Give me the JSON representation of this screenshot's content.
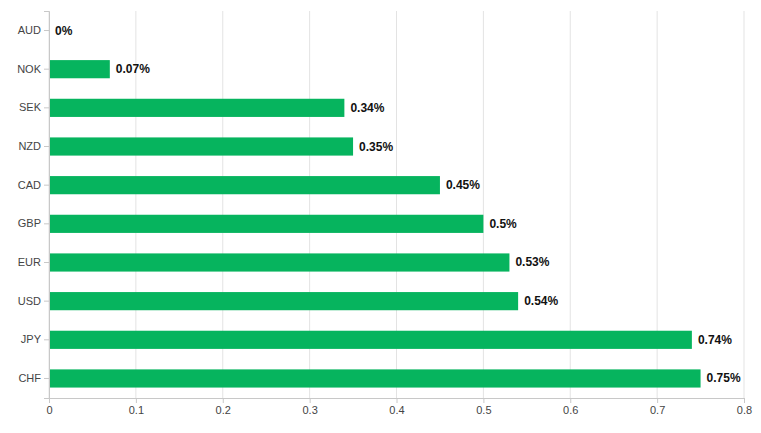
{
  "chart_data": {
    "type": "bar",
    "orientation": "horizontal",
    "categories": [
      "AUD",
      "NOK",
      "SEK",
      "NZD",
      "CAD",
      "GBP",
      "EUR",
      "USD",
      "JPY",
      "CHF"
    ],
    "values": [
      0,
      0.07,
      0.34,
      0.35,
      0.45,
      0.5,
      0.53,
      0.54,
      0.74,
      0.75
    ],
    "value_labels": [
      "0%",
      "0.07%",
      "0.34%",
      "0.35%",
      "0.45%",
      "0.5%",
      "0.53%",
      "0.54%",
      "0.74%",
      "0.75%"
    ],
    "data_labels": true,
    "color": "#06b45e",
    "xlim": [
      0,
      0.8
    ],
    "xticks": [
      0,
      0.1,
      0.2,
      0.3,
      0.4,
      0.5,
      0.6,
      0.7,
      0.8
    ],
    "grid": true
  }
}
